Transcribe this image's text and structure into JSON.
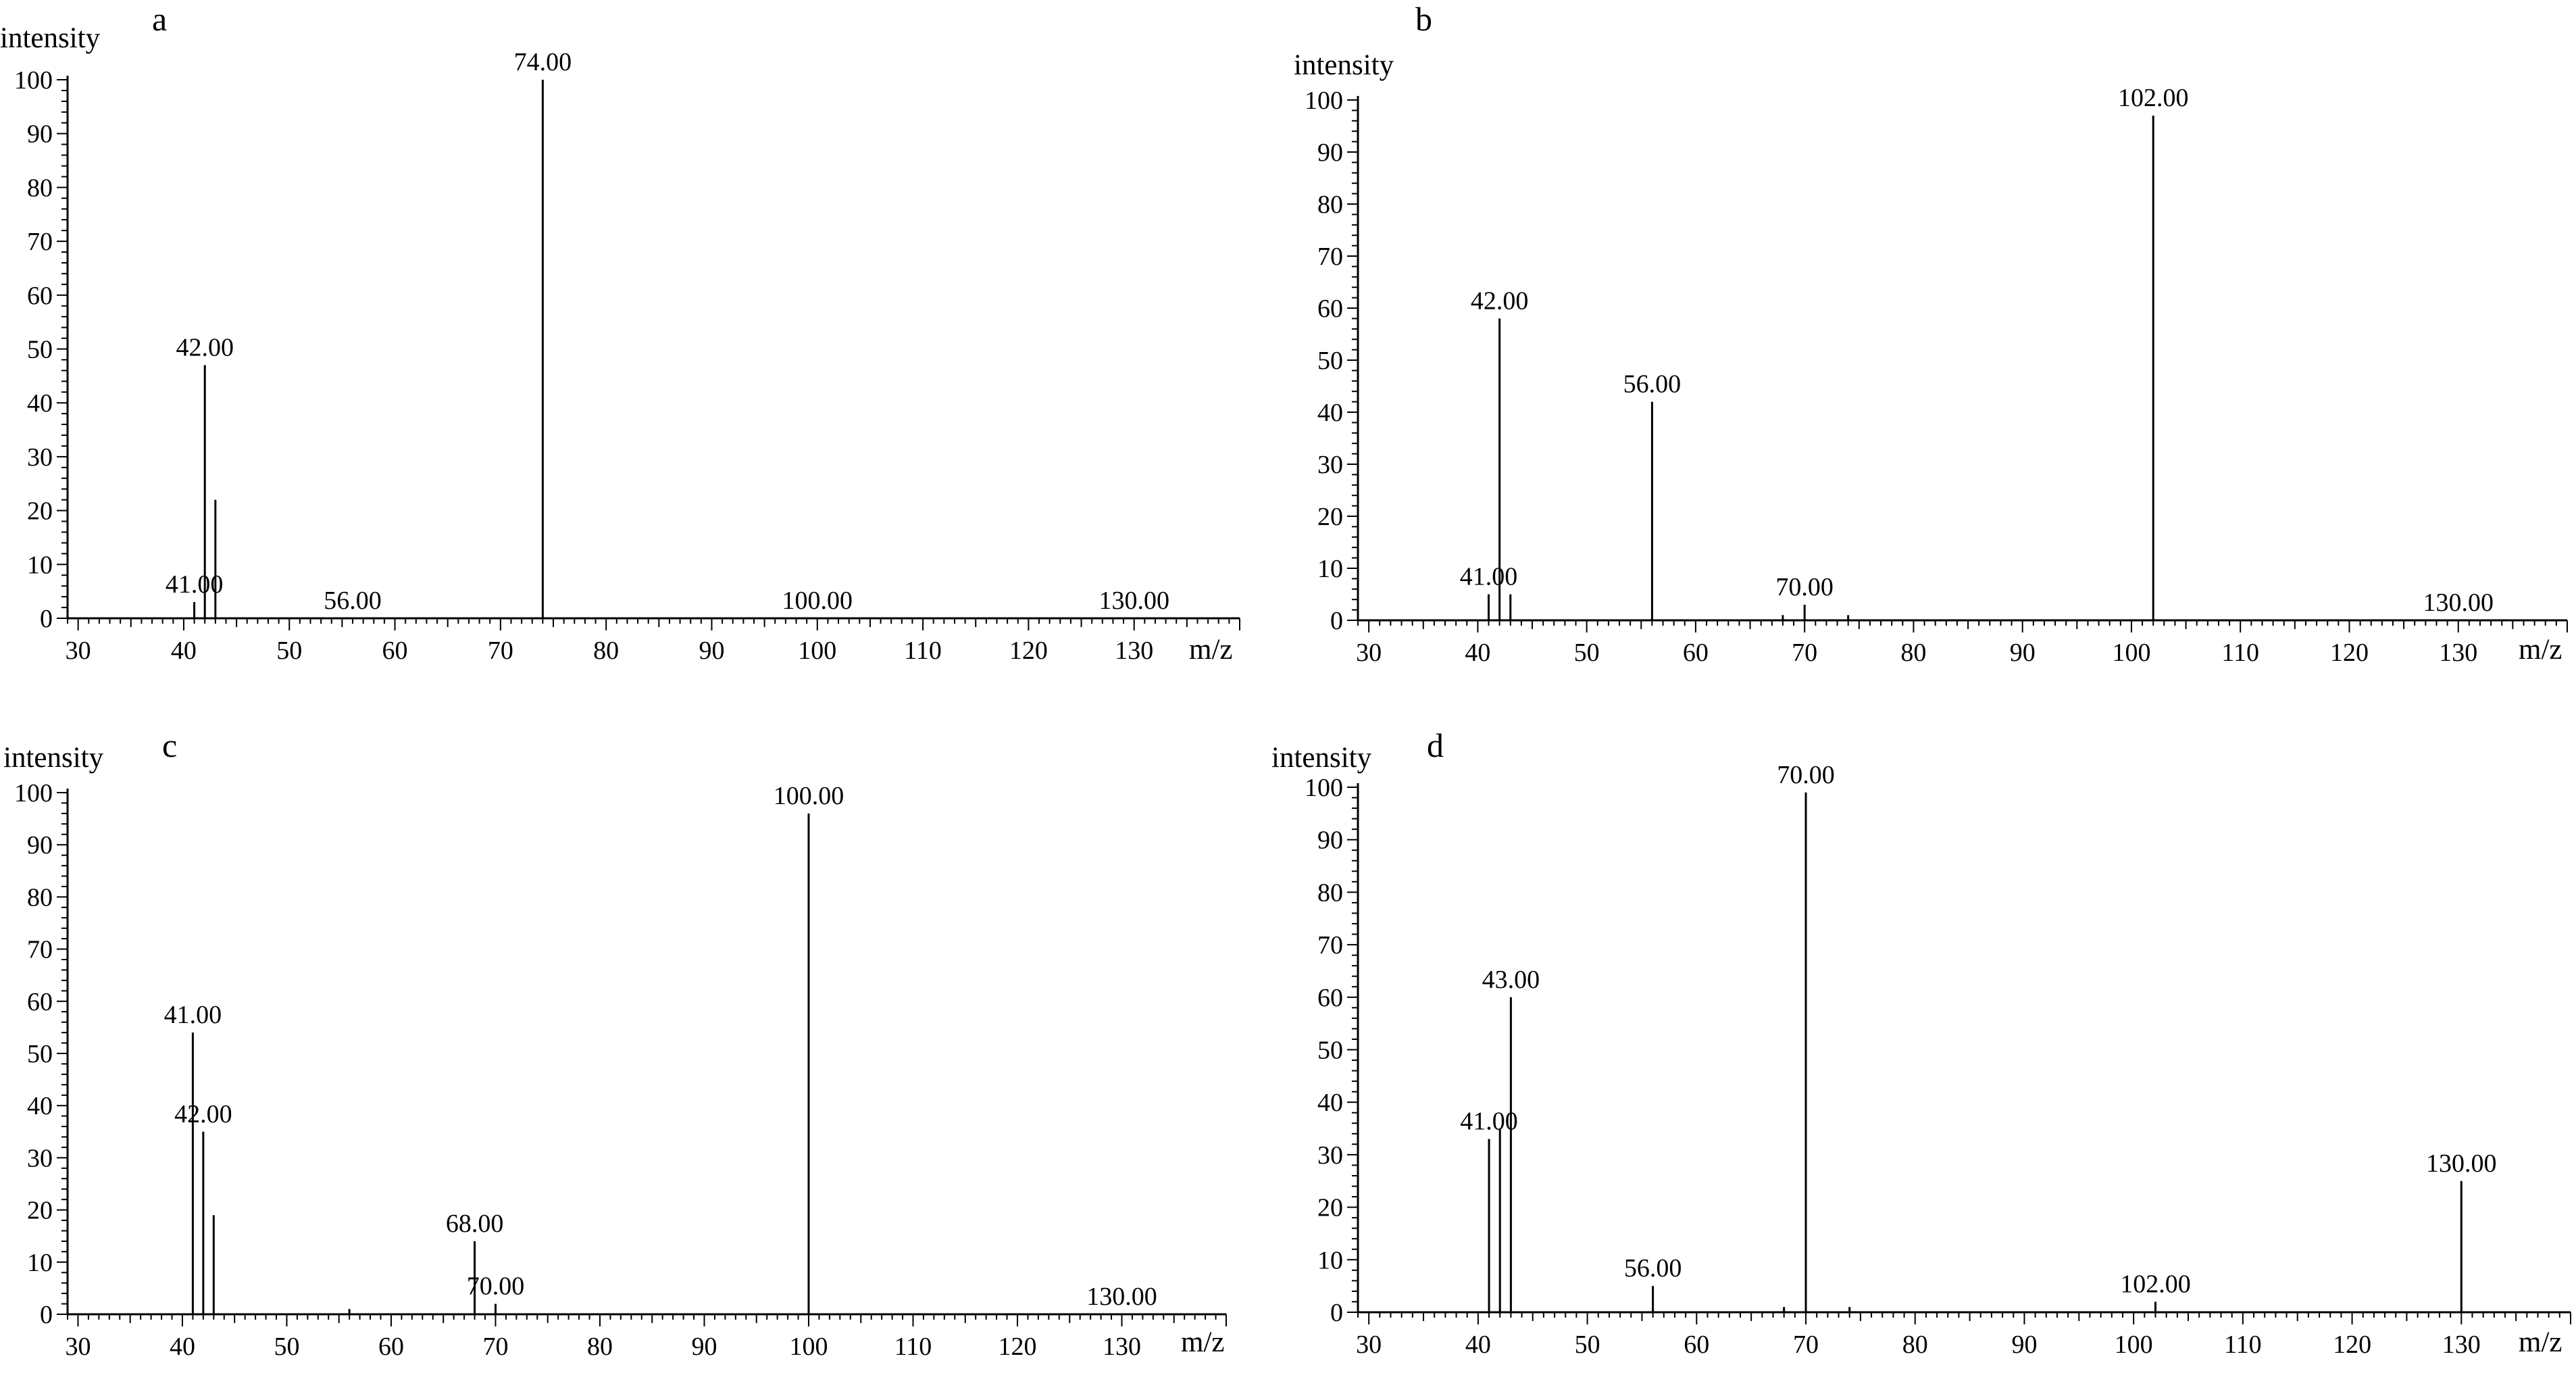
{
  "chart_data": [
    {
      "type": "bar",
      "panel_label": "a",
      "ylabel": "intensity",
      "xlabel": "m/z",
      "xlim": [
        29,
        140
      ],
      "ylim": [
        0,
        100
      ],
      "xticks": [
        30,
        40,
        50,
        60,
        70,
        80,
        90,
        100,
        110,
        120,
        130
      ],
      "yticks": [
        0,
        10,
        20,
        30,
        40,
        50,
        60,
        70,
        80,
        90,
        100
      ],
      "peaks": [
        {
          "mz": 41,
          "intensity": 3
        },
        {
          "mz": 42,
          "intensity": 47
        },
        {
          "mz": 43,
          "intensity": 22
        },
        {
          "mz": 74,
          "intensity": 100
        }
      ],
      "annotations": [
        {
          "text": "41.00",
          "mz": 41,
          "intensity": 3
        },
        {
          "text": "42.00",
          "mz": 42,
          "intensity": 47
        },
        {
          "text": "56.00",
          "mz": 56,
          "intensity": 0
        },
        {
          "text": "74.00",
          "mz": 74,
          "intensity": 100
        },
        {
          "text": "100.00",
          "mz": 100,
          "intensity": 0
        },
        {
          "text": "130.00",
          "mz": 130,
          "intensity": 0
        }
      ]
    },
    {
      "type": "bar",
      "panel_label": "b",
      "ylabel": "intensity",
      "xlabel": "m/z",
      "xlim": [
        29,
        140
      ],
      "ylim": [
        0,
        100
      ],
      "xticks": [
        30,
        40,
        50,
        60,
        70,
        80,
        90,
        100,
        110,
        120,
        130
      ],
      "yticks": [
        0,
        10,
        20,
        30,
        40,
        50,
        60,
        70,
        80,
        90,
        100
      ],
      "peaks": [
        {
          "mz": 41,
          "intensity": 5
        },
        {
          "mz": 42,
          "intensity": 58
        },
        {
          "mz": 43,
          "intensity": 5
        },
        {
          "mz": 56,
          "intensity": 42
        },
        {
          "mz": 68,
          "intensity": 1
        },
        {
          "mz": 70,
          "intensity": 3
        },
        {
          "mz": 74,
          "intensity": 1
        },
        {
          "mz": 102,
          "intensity": 97
        }
      ],
      "annotations": [
        {
          "text": "41.00",
          "mz": 41,
          "intensity": 5
        },
        {
          "text": "42.00",
          "mz": 42,
          "intensity": 58
        },
        {
          "text": "56.00",
          "mz": 56,
          "intensity": 42
        },
        {
          "text": "70.00",
          "mz": 70,
          "intensity": 3
        },
        {
          "text": "102.00",
          "mz": 102,
          "intensity": 97
        },
        {
          "text": "130.00",
          "mz": 130,
          "intensity": 0
        }
      ]
    },
    {
      "type": "bar",
      "panel_label": "c",
      "ylabel": "intensity",
      "xlabel": "m/z",
      "xlim": [
        29,
        140
      ],
      "ylim": [
        0,
        100
      ],
      "xticks": [
        30,
        40,
        50,
        60,
        70,
        80,
        90,
        100,
        110,
        120,
        130
      ],
      "yticks": [
        0,
        10,
        20,
        30,
        40,
        50,
        60,
        70,
        80,
        90,
        100
      ],
      "peaks": [
        {
          "mz": 41,
          "intensity": 54
        },
        {
          "mz": 42,
          "intensity": 35
        },
        {
          "mz": 43,
          "intensity": 19
        },
        {
          "mz": 56,
          "intensity": 1
        },
        {
          "mz": 68,
          "intensity": 14
        },
        {
          "mz": 70,
          "intensity": 2
        },
        {
          "mz": 100,
          "intensity": 96
        }
      ],
      "annotations": [
        {
          "text": "41.00",
          "mz": 41,
          "intensity": 54
        },
        {
          "text": "42.00",
          "mz": 42,
          "intensity": 35
        },
        {
          "text": "68.00",
          "mz": 68,
          "intensity": 14
        },
        {
          "text": "70.00",
          "mz": 70,
          "intensity": 2
        },
        {
          "text": "100.00",
          "mz": 100,
          "intensity": 96
        },
        {
          "text": "130.00",
          "mz": 130,
          "intensity": 0
        }
      ]
    },
    {
      "type": "bar",
      "panel_label": "d",
      "ylabel": "intensity",
      "xlabel": "m/z",
      "xlim": [
        29,
        140
      ],
      "ylim": [
        0,
        100
      ],
      "xticks": [
        30,
        40,
        50,
        60,
        70,
        80,
        90,
        100,
        110,
        120,
        130
      ],
      "yticks": [
        0,
        10,
        20,
        30,
        40,
        50,
        60,
        70,
        80,
        90,
        100
      ],
      "peaks": [
        {
          "mz": 41,
          "intensity": 33
        },
        {
          "mz": 42,
          "intensity": 35
        },
        {
          "mz": 43,
          "intensity": 60
        },
        {
          "mz": 56,
          "intensity": 5
        },
        {
          "mz": 68,
          "intensity": 1
        },
        {
          "mz": 70,
          "intensity": 99
        },
        {
          "mz": 74,
          "intensity": 1
        },
        {
          "mz": 102,
          "intensity": 2
        },
        {
          "mz": 130,
          "intensity": 25
        }
      ],
      "annotations": [
        {
          "text": "41.00",
          "mz": 41,
          "intensity": 33
        },
        {
          "text": "43.00",
          "mz": 43,
          "intensity": 60
        },
        {
          "text": "56.00",
          "mz": 56,
          "intensity": 5
        },
        {
          "text": "70.00",
          "mz": 70,
          "intensity": 99
        },
        {
          "text": "102.00",
          "mz": 102,
          "intensity": 2
        },
        {
          "text": "130.00",
          "mz": 130,
          "intensity": 25
        }
      ]
    }
  ]
}
